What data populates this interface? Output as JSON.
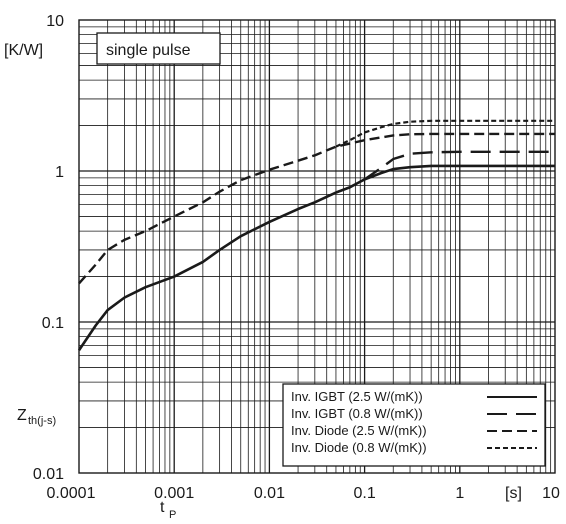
{
  "chart_data": {
    "type": "line",
    "xscale": "log",
    "yscale": "log",
    "xlim": [
      0.0001,
      10
    ],
    "ylim": [
      0.01,
      10
    ],
    "x_ticks": [
      "0.0001",
      "0.001",
      "0.01",
      "0.1",
      "1",
      "10"
    ],
    "y_ticks": [
      "0.01",
      "0.1",
      "1",
      "10"
    ],
    "ylabel_unit": "[K/W]",
    "xlabel_unit": "[s]",
    "ylabel_main": "Z",
    "ylabel_sub": "th(j-s)",
    "xlabel_main": "t",
    "xlabel_sub": "P",
    "annotation": "single pulse",
    "grid": true,
    "legend_position": "bottom-right",
    "series": [
      {
        "name": "Inv. IGBT  (2.5 W/(mK))",
        "style": "solid",
        "points": [
          [
            0.0001,
            0.065
          ],
          [
            0.00015,
            0.095
          ],
          [
            0.0002,
            0.12
          ],
          [
            0.0003,
            0.145
          ],
          [
            0.0005,
            0.17
          ],
          [
            0.001,
            0.2
          ],
          [
            0.002,
            0.25
          ],
          [
            0.003,
            0.3
          ],
          [
            0.005,
            0.37
          ],
          [
            0.01,
            0.46
          ],
          [
            0.02,
            0.56
          ],
          [
            0.03,
            0.62
          ],
          [
            0.05,
            0.72
          ],
          [
            0.07,
            0.78
          ],
          [
            0.1,
            0.88
          ],
          [
            0.15,
            0.97
          ],
          [
            0.2,
            1.03
          ],
          [
            0.3,
            1.06
          ],
          [
            0.5,
            1.08
          ],
          [
            1,
            1.08
          ],
          [
            2,
            1.08
          ],
          [
            5,
            1.08
          ],
          [
            10,
            1.08
          ]
        ]
      },
      {
        "name": "Inv. IGBT  (0.8 W/(mK))",
        "style": "longdash",
        "points": [
          [
            0.05,
            0.72
          ],
          [
            0.07,
            0.78
          ],
          [
            0.1,
            0.88
          ],
          [
            0.15,
            1.05
          ],
          [
            0.2,
            1.2
          ],
          [
            0.3,
            1.3
          ],
          [
            0.5,
            1.33
          ],
          [
            1,
            1.34
          ],
          [
            2,
            1.34
          ],
          [
            5,
            1.34
          ],
          [
            10,
            1.34
          ]
        ]
      },
      {
        "name": "Inv. Diode (2.5 W/(mK))",
        "style": "dash",
        "points": [
          [
            0.0001,
            0.18
          ],
          [
            0.00015,
            0.24
          ],
          [
            0.0002,
            0.3
          ],
          [
            0.0003,
            0.35
          ],
          [
            0.0005,
            0.4
          ],
          [
            0.001,
            0.5
          ],
          [
            0.002,
            0.62
          ],
          [
            0.003,
            0.73
          ],
          [
            0.005,
            0.87
          ],
          [
            0.01,
            1.02
          ],
          [
            0.02,
            1.17
          ],
          [
            0.03,
            1.27
          ],
          [
            0.05,
            1.45
          ],
          [
            0.07,
            1.52
          ],
          [
            0.1,
            1.6
          ],
          [
            0.15,
            1.67
          ],
          [
            0.2,
            1.72
          ],
          [
            0.3,
            1.75
          ],
          [
            0.5,
            1.76
          ],
          [
            1,
            1.76
          ],
          [
            2,
            1.76
          ],
          [
            5,
            1.76
          ],
          [
            10,
            1.76
          ]
        ]
      },
      {
        "name": "Inv. Diode (0.8 W/(mK))",
        "style": "shortdash",
        "points": [
          [
            0.05,
            1.45
          ],
          [
            0.07,
            1.6
          ],
          [
            0.1,
            1.8
          ],
          [
            0.15,
            1.95
          ],
          [
            0.2,
            2.05
          ],
          [
            0.3,
            2.12
          ],
          [
            0.5,
            2.15
          ],
          [
            1,
            2.15
          ],
          [
            2,
            2.15
          ],
          [
            5,
            2.15
          ],
          [
            10,
            2.15
          ]
        ]
      }
    ]
  }
}
